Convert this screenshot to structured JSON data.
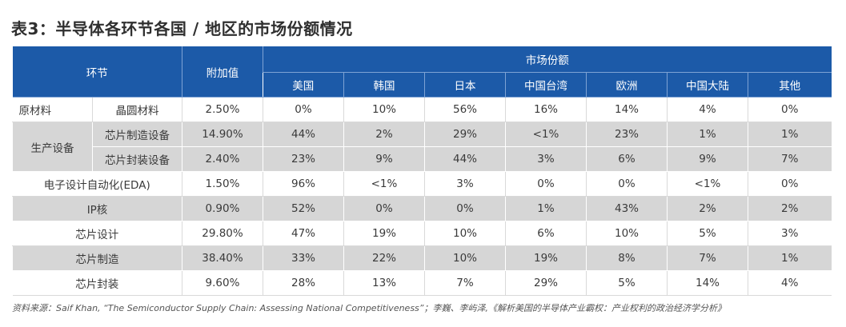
{
  "title": "表3：半导体各环节各国 / 地区的市场份额情况",
  "header": {
    "segment": "环节",
    "value_added": "附加值",
    "market_share": "市场份额",
    "regions": [
      "美国",
      "韩国",
      "日本",
      "中国台湾",
      "欧洲",
      "中国大陆",
      "其他"
    ]
  },
  "groups": {
    "raw_materials": "原材料",
    "production_equipment": "生产设备"
  },
  "rows": [
    {
      "label": "晶圆材料",
      "value_added": "2.50%",
      "shares": [
        "0%",
        "10%",
        "56%",
        "16%",
        "14%",
        "4%",
        "0%"
      ]
    },
    {
      "label": "芯片制造设备",
      "value_added": "14.90%",
      "shares": [
        "44%",
        "2%",
        "29%",
        "<1%",
        "23%",
        "1%",
        "1%"
      ]
    },
    {
      "label": "芯片封装设备",
      "value_added": "2.40%",
      "shares": [
        "23%",
        "9%",
        "44%",
        "3%",
        "6%",
        "9%",
        "7%"
      ]
    },
    {
      "label": "电子设计自动化(EDA)",
      "value_added": "1.50%",
      "shares": [
        "96%",
        "<1%",
        "3%",
        "0%",
        "0%",
        "<1%",
        "0%"
      ]
    },
    {
      "label": "IP核",
      "value_added": "0.90%",
      "shares": [
        "52%",
        "0%",
        "0%",
        "1%",
        "43%",
        "2%",
        "2%"
      ]
    },
    {
      "label": "芯片设计",
      "value_added": "29.80%",
      "shares": [
        "47%",
        "19%",
        "10%",
        "6%",
        "10%",
        "5%",
        "3%"
      ]
    },
    {
      "label": "芯片制造",
      "value_added": "38.40%",
      "shares": [
        "33%",
        "22%",
        "10%",
        "19%",
        "8%",
        "7%",
        "1%"
      ]
    },
    {
      "label": "芯片封装",
      "value_added": "9.60%",
      "shares": [
        "28%",
        "13%",
        "7%",
        "29%",
        "5%",
        "14%",
        "4%"
      ]
    }
  ],
  "source": "资料来源：Saif Khan, “The Semiconductor Supply Chain: Assessing National Competitiveness”；李巍、李屿泽,《解析美国的半导体产业霸权：产业权利的政治经济学分析》",
  "colors": {
    "header_bg": "#1c5aa8",
    "stripe_bg": "#d6d6d6"
  }
}
